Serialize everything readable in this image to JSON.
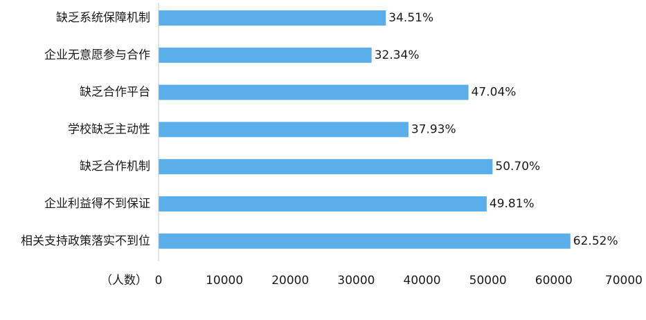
{
  "chart_data": {
    "type": "bar",
    "orientation": "horizontal",
    "categories": [
      "缺乏系统保障机制",
      "企业无意愿参与合作",
      "缺乏合作平台",
      "学校缺乏主动性",
      "缺乏合作机制",
      "企业利益得不到保证",
      "相关支持政策落实不到位"
    ],
    "values": [
      34510,
      32340,
      47040,
      37930,
      50700,
      49810,
      62520
    ],
    "data_labels": [
      "34.51%",
      "32.34%",
      "47.04%",
      "37.93%",
      "50.70%",
      "49.81%",
      "62.52%"
    ],
    "xlabel": "（人数）",
    "xlim": [
      0,
      70000
    ],
    "xticks": [
      "0",
      "10000",
      "20000",
      "30000",
      "40000",
      "50000",
      "60000",
      "70000"
    ],
    "bar_color": "#5aaeea",
    "axis_color": "#c8c8c8",
    "grid": false,
    "legend": "none"
  }
}
